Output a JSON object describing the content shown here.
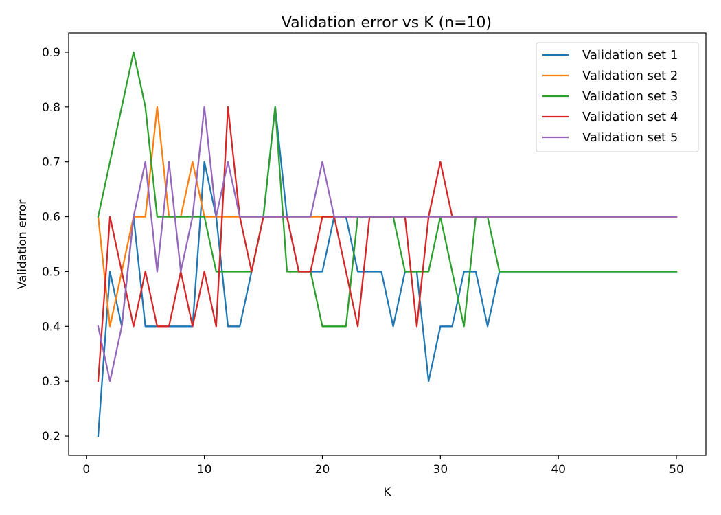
{
  "chart_data": {
    "type": "line",
    "title": "Validation error vs K (n=10)",
    "xlabel": "K",
    "ylabel": "Validation error",
    "xlim": [
      -1.5,
      52.5
    ],
    "ylim": [
      0.165,
      0.935
    ],
    "xticks": [
      0,
      10,
      20,
      30,
      40,
      50
    ],
    "yticks": [
      0.2,
      0.3,
      0.4,
      0.5,
      0.6,
      0.7,
      0.8,
      0.9
    ],
    "grid": false,
    "legend_position": "top-right",
    "x": [
      1,
      2,
      3,
      4,
      5,
      6,
      7,
      8,
      9,
      10,
      11,
      12,
      13,
      14,
      15,
      16,
      17,
      18,
      19,
      20,
      21,
      22,
      23,
      24,
      25,
      26,
      27,
      28,
      29,
      30,
      31,
      32,
      33,
      34,
      35,
      36,
      37,
      38,
      39,
      40,
      41,
      42,
      43,
      44,
      45,
      46,
      47,
      48,
      49,
      50
    ],
    "series": [
      {
        "name": "Validation set 1",
        "color": "#1f77b4",
        "values": [
          0.2,
          0.5,
          0.4,
          0.6,
          0.4,
          0.4,
          0.4,
          0.4,
          0.4,
          0.7,
          0.6,
          0.4,
          0.4,
          0.5,
          0.6,
          0.8,
          0.6,
          0.5,
          0.5,
          0.5,
          0.6,
          0.6,
          0.5,
          0.5,
          0.5,
          0.4,
          0.5,
          0.5,
          0.3,
          0.4,
          0.4,
          0.5,
          0.5,
          0.4,
          0.5,
          0.5,
          0.5,
          0.5,
          0.5,
          0.5,
          0.5,
          0.5,
          0.5,
          0.5,
          0.5,
          0.5,
          0.5,
          0.5,
          0.5,
          0.5
        ]
      },
      {
        "name": "Validation set 2",
        "color": "#ff7f0e",
        "values": [
          0.6,
          0.4,
          0.5,
          0.6,
          0.6,
          0.8,
          0.6,
          0.6,
          0.7,
          0.6,
          0.6,
          0.6,
          0.6,
          0.6,
          0.6,
          0.6,
          0.6,
          0.6,
          0.6,
          0.6,
          0.6,
          0.6,
          0.6,
          0.6,
          0.6,
          0.6,
          0.6,
          0.6,
          0.6,
          0.6,
          0.6,
          0.6,
          0.6,
          0.6,
          0.6,
          0.6,
          0.6,
          0.6,
          0.6,
          0.6,
          0.6,
          0.6,
          0.6,
          0.6,
          0.6,
          0.6,
          0.6,
          0.6,
          0.6,
          0.6
        ]
      },
      {
        "name": "Validation set 3",
        "color": "#2ca02c",
        "values": [
          0.6,
          0.7,
          0.8,
          0.9,
          0.8,
          0.6,
          0.6,
          0.6,
          0.6,
          0.6,
          0.5,
          0.5,
          0.5,
          0.5,
          0.6,
          0.8,
          0.5,
          0.5,
          0.5,
          0.4,
          0.4,
          0.4,
          0.6,
          0.6,
          0.6,
          0.6,
          0.5,
          0.5,
          0.5,
          0.6,
          0.5,
          0.4,
          0.6,
          0.6,
          0.5,
          0.5,
          0.5,
          0.5,
          0.5,
          0.5,
          0.5,
          0.5,
          0.5,
          0.5,
          0.5,
          0.5,
          0.5,
          0.5,
          0.5,
          0.5
        ]
      },
      {
        "name": "Validation set 4",
        "color": "#d62728",
        "values": [
          0.3,
          0.6,
          0.5,
          0.4,
          0.5,
          0.4,
          0.4,
          0.5,
          0.4,
          0.5,
          0.4,
          0.8,
          0.6,
          0.5,
          0.6,
          0.6,
          0.6,
          0.5,
          0.5,
          0.6,
          0.6,
          0.5,
          0.4,
          0.6,
          0.6,
          0.6,
          0.6,
          0.4,
          0.6,
          0.7,
          0.6,
          0.6,
          0.6,
          0.6,
          0.6,
          0.6,
          0.6,
          0.6,
          0.6,
          0.6,
          0.6,
          0.6,
          0.6,
          0.6,
          0.6,
          0.6,
          0.6,
          0.6,
          0.6,
          0.6
        ]
      },
      {
        "name": "Validation set 5",
        "color": "#9467bd",
        "values": [
          0.4,
          0.3,
          0.4,
          0.6,
          0.7,
          0.5,
          0.7,
          0.5,
          0.6,
          0.8,
          0.6,
          0.7,
          0.6,
          0.6,
          0.6,
          0.6,
          0.6,
          0.6,
          0.6,
          0.7,
          0.6,
          0.6,
          0.6,
          0.6,
          0.6,
          0.6,
          0.6,
          0.6,
          0.6,
          0.6,
          0.6,
          0.6,
          0.6,
          0.6,
          0.6,
          0.6,
          0.6,
          0.6,
          0.6,
          0.6,
          0.6,
          0.6,
          0.6,
          0.6,
          0.6,
          0.6,
          0.6,
          0.6,
          0.6,
          0.6
        ]
      }
    ]
  }
}
